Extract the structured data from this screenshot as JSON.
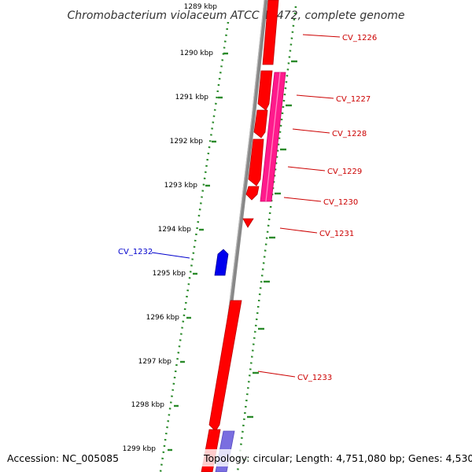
{
  "title": "Chromobacterium violaceum ATCC 12472, complete genome",
  "footer": {
    "accession": "Accession: NC_005085",
    "summary": "Topology: circular; Length: 4,751,080 bp; Genes: 4,530"
  },
  "colors": {
    "forward_gene": "#ff0000",
    "reverse_gene": "#0000ee",
    "pink_feature": "#ff1a8c",
    "lavender_feature": "#7a6ee0",
    "backbone": "#888888",
    "tick": "#2a8a2a",
    "forward_label": "#cc0000",
    "reverse_label": "#0000cc"
  },
  "ruler": [
    {
      "label": "1289 kbp"
    },
    {
      "label": "1290 kbp"
    },
    {
      "label": "1291 kbp"
    },
    {
      "label": "1292 kbp"
    },
    {
      "label": "1293 kbp"
    },
    {
      "label": "1294 kbp"
    },
    {
      "label": "1295 kbp"
    },
    {
      "label": "1296 kbp"
    },
    {
      "label": "1297 kbp"
    },
    {
      "label": "1298 kbp"
    },
    {
      "label": "1299 kbp"
    }
  ],
  "gene_labels": [
    {
      "label": "CV_1226",
      "strand": "forward"
    },
    {
      "label": "CV_1227",
      "strand": "forward"
    },
    {
      "label": "CV_1228",
      "strand": "forward"
    },
    {
      "label": "CV_1229",
      "strand": "forward"
    },
    {
      "label": "CV_1230",
      "strand": "forward"
    },
    {
      "label": "CV_1231",
      "strand": "forward"
    },
    {
      "label": "CV_1232",
      "strand": "reverse"
    },
    {
      "label": "CV_1233",
      "strand": "forward"
    }
  ]
}
